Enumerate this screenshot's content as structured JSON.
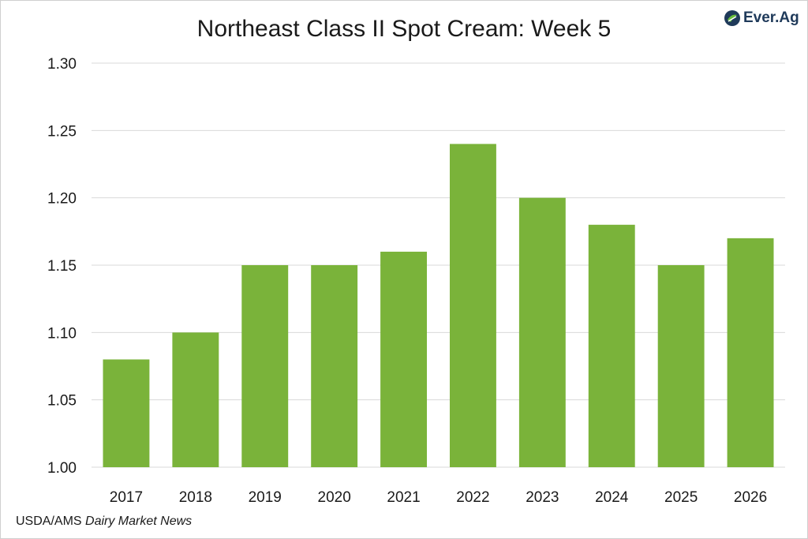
{
  "title": "Northeast Class II Spot Cream: Week 5",
  "logo": {
    "text": "Ever.Ag",
    "icon": "everag-logo-icon",
    "color": "#1f3a5a",
    "accent": "#6abf3c"
  },
  "source": {
    "prefix": "USDA/AMS ",
    "italic": "Dairy Market News"
  },
  "chart_data": {
    "type": "bar",
    "title": "Northeast Class II Spot Cream: Week 5",
    "categories": [
      "2017",
      "2018",
      "2019",
      "2020",
      "2021",
      "2022",
      "2023",
      "2024",
      "2025",
      "2026"
    ],
    "values": [
      1.08,
      1.1,
      1.15,
      1.15,
      1.16,
      1.24,
      1.2,
      1.18,
      1.15,
      1.17
    ],
    "ylim": [
      1.0,
      1.3
    ],
    "yticks": [
      "1.00",
      "1.05",
      "1.10",
      "1.15",
      "1.20",
      "1.25",
      "1.30"
    ],
    "xlabel": "",
    "ylabel": "",
    "grid": true,
    "bar_color": "#7ab33a",
    "grid_color": "#d9d9d9"
  }
}
